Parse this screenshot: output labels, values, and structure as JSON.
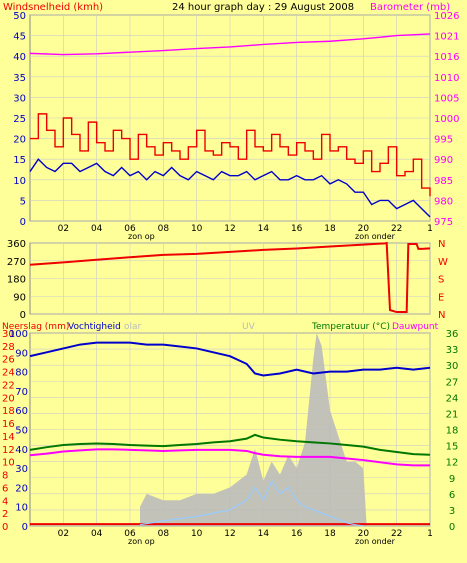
{
  "header": {
    "left_label": "Windsnelheid (kmh)",
    "title": "24 hour graph day : 29 August 2008",
    "right_label": "Barometer (mb)"
  },
  "colors": {
    "background": "#ffff99",
    "gust": "#ee0000",
    "wind": "#0000cc",
    "barometer": "#ff00ff",
    "direction": "#ee0000",
    "rain": "#bbbbbb",
    "humidity": "#0000cc",
    "solar": "#bbbbbb",
    "uv": "#99ccff",
    "temperature": "#007700",
    "dewpoint": "#ff00ff",
    "axis_left": "#0000cc",
    "axis_right": "#ff00ff"
  },
  "sun_labels": {
    "sunrise": "zon op",
    "sunset": "zon onder"
  },
  "chart_data": [
    {
      "name": "wind_barometer",
      "type": "line",
      "x_ticks": [
        "02",
        "04",
        "06",
        "08",
        "10",
        "12",
        "14",
        "16",
        "18",
        "20",
        "22",
        "1"
      ],
      "x_range_hours": [
        0,
        24
      ],
      "y_left": {
        "label": "Windsnelheid (kmh)",
        "ticks": [
          0,
          5,
          10,
          15,
          20,
          25,
          30,
          35,
          40,
          45,
          50
        ],
        "range": [
          0,
          50
        ]
      },
      "y_right": {
        "label": "Barometer (mb)",
        "ticks": [
          975,
          980,
          985,
          990,
          995,
          1000,
          1005,
          1010,
          1016,
          1021,
          1026
        ],
        "range": [
          975,
          1026
        ]
      },
      "series": [
        {
          "name": "gust",
          "axis": "left",
          "step": true,
          "x": [
            0,
            0.5,
            1,
            1.5,
            2,
            2.5,
            3,
            3.5,
            4,
            4.5,
            5,
            5.5,
            6,
            6.5,
            7,
            7.5,
            8,
            8.5,
            9,
            9.5,
            10,
            10.5,
            11,
            11.5,
            12,
            12.5,
            13,
            13.5,
            14,
            14.5,
            15,
            15.5,
            16,
            16.5,
            17,
            17.5,
            18,
            18.5,
            19,
            19.5,
            20,
            20.5,
            21,
            21.5,
            22,
            22.5,
            23,
            23.5,
            24
          ],
          "y": [
            20,
            26,
            22,
            18,
            25,
            21,
            17,
            24,
            19,
            17,
            22,
            20,
            15,
            21,
            18,
            16,
            19,
            17,
            15,
            18,
            22,
            17,
            16,
            19,
            18,
            15,
            22,
            18,
            17,
            21,
            18,
            16,
            19,
            17,
            15,
            21,
            17,
            18,
            15,
            14,
            17,
            12,
            14,
            18,
            11,
            12,
            15,
            8,
            6
          ]
        },
        {
          "name": "wind",
          "axis": "left",
          "step": false,
          "x": [
            0,
            0.5,
            1,
            1.5,
            2,
            2.5,
            3,
            3.5,
            4,
            4.5,
            5,
            5.5,
            6,
            6.5,
            7,
            7.5,
            8,
            8.5,
            9,
            9.5,
            10,
            10.5,
            11,
            11.5,
            12,
            12.5,
            13,
            13.5,
            14,
            14.5,
            15,
            15.5,
            16,
            16.5,
            17,
            17.5,
            18,
            18.5,
            19,
            19.5,
            20,
            20.5,
            21,
            21.5,
            22,
            22.5,
            23,
            23.5,
            24
          ],
          "y": [
            12,
            15,
            13,
            12,
            14,
            14,
            12,
            13,
            14,
            12,
            11,
            13,
            11,
            12,
            10,
            12,
            11,
            13,
            11,
            10,
            12,
            11,
            10,
            12,
            11,
            11,
            12,
            10,
            11,
            12,
            10,
            10,
            11,
            10,
            10,
            11,
            9,
            10,
            9,
            7,
            7,
            4,
            5,
            5,
            3,
            4,
            5,
            3,
            1
          ]
        },
        {
          "name": "barometer",
          "axis": "right",
          "step": false,
          "x": [
            0,
            2,
            4,
            6,
            8,
            10,
            12,
            14,
            16,
            18,
            20,
            22,
            24
          ],
          "y": [
            1016.5,
            1016.2,
            1016.4,
            1016.8,
            1017.2,
            1017.7,
            1018.1,
            1018.7,
            1019.2,
            1019.5,
            1020.1,
            1020.9,
            1021.3
          ]
        }
      ]
    },
    {
      "name": "wind_direction",
      "type": "line",
      "x_range_hours": [
        0,
        24
      ],
      "y_left": {
        "ticks": [
          0,
          90,
          180,
          270,
          360
        ],
        "range": [
          0,
          360
        ]
      },
      "y_right": {
        "ticks": [
          "N",
          "W",
          "S",
          "E",
          "N"
        ]
      },
      "series": [
        {
          "name": "direction",
          "step": false,
          "x": [
            0,
            2,
            4,
            6,
            8,
            10,
            12,
            14,
            16,
            18,
            20,
            21.3,
            21.4,
            21.6,
            22,
            22.6,
            22.7,
            23.2,
            23.3,
            23.5,
            24
          ],
          "y": [
            250,
            262,
            275,
            288,
            300,
            305,
            315,
            325,
            332,
            342,
            352,
            358,
            360,
            20,
            10,
            10,
            355,
            355,
            330,
            330,
            333
          ]
        }
      ]
    },
    {
      "name": "rain_humidity_temperature",
      "type": "line",
      "x_ticks": [
        "02",
        "04",
        "06",
        "08",
        "10",
        "12",
        "14",
        "16",
        "18",
        "20",
        "22",
        "1"
      ],
      "x_range_hours": [
        0,
        24
      ],
      "header_labels": [
        "Neerslag (mm)",
        "Vochtigheid",
        "olar",
        "UV",
        "Temperatuur (°C)",
        "Dauwpunt"
      ],
      "y_rain": {
        "label": "Neerslag (mm)",
        "ticks": [
          0,
          2,
          4,
          6,
          8,
          10,
          12,
          14,
          16,
          18,
          20,
          22,
          24,
          26,
          28,
          30
        ],
        "range": [
          0,
          30
        ]
      },
      "y_humidity": {
        "label": "Vochtigheid",
        "ticks": [
          0,
          10,
          20,
          30,
          40,
          50,
          60,
          70,
          80,
          90,
          100
        ],
        "range": [
          0,
          100
        ]
      },
      "y_temperature": {
        "label": "Temperatuur (°C)",
        "ticks": [
          0,
          3,
          6,
          9,
          12,
          15,
          18,
          21,
          24,
          27,
          30,
          33,
          36
        ],
        "range": [
          0,
          36
        ]
      },
      "series": [
        {
          "name": "humidity",
          "axis": "humidity",
          "x": [
            0,
            1,
            2,
            3,
            4,
            5,
            6,
            7,
            8,
            9,
            10,
            11,
            12,
            13,
            13.5,
            14,
            15,
            16,
            17,
            18,
            19,
            20,
            21,
            22,
            23,
            24
          ],
          "y": [
            88,
            90,
            92,
            94,
            95,
            95,
            95,
            94,
            94,
            93,
            92,
            90,
            88,
            84,
            79,
            78,
            79,
            81,
            79,
            80,
            80,
            81,
            81,
            82,
            81,
            82
          ]
        },
        {
          "name": "temperature",
          "axis": "temperature",
          "x": [
            0,
            1,
            2,
            3,
            4,
            5,
            6,
            7,
            8,
            9,
            10,
            11,
            12,
            13,
            13.5,
            14,
            15,
            16,
            17,
            18,
            19,
            20,
            21,
            22,
            23,
            24
          ],
          "y": [
            14.2,
            14.7,
            15.1,
            15.3,
            15.4,
            15.3,
            15.1,
            15.0,
            14.9,
            15.1,
            15.3,
            15.6,
            15.8,
            16.3,
            17.0,
            16.5,
            16.1,
            15.8,
            15.6,
            15.4,
            15.1,
            14.8,
            14.2,
            13.8,
            13.4,
            13.3
          ]
        },
        {
          "name": "dewpoint",
          "axis": "temperature",
          "x": [
            0,
            1,
            2,
            3,
            4,
            5,
            6,
            7,
            8,
            9,
            10,
            11,
            12,
            13,
            13.5,
            14,
            15,
            16,
            17,
            18,
            19,
            20,
            21,
            22,
            23,
            24
          ],
          "y": [
            13.2,
            13.5,
            13.9,
            14.1,
            14.3,
            14.3,
            14.2,
            14.1,
            14.0,
            14.1,
            14.2,
            14.2,
            14.2,
            14.0,
            13.6,
            13.3,
            13.0,
            12.9,
            12.9,
            12.9,
            12.6,
            12.3,
            11.9,
            11.5,
            11.3,
            11.3
          ]
        },
        {
          "name": "rain_total",
          "axis": "rain",
          "x": [
            0,
            24
          ],
          "y": [
            0.3,
            0.3
          ]
        },
        {
          "name": "solar",
          "axis": "rain",
          "type": "area",
          "x": [
            6.6,
            7,
            8,
            9,
            10,
            11,
            12,
            13,
            13.5,
            14,
            14.5,
            15,
            15.5,
            16,
            16.5,
            17,
            17.2,
            17.5,
            18,
            18.5,
            19,
            19.5,
            20,
            20.2
          ],
          "y": [
            3,
            5,
            4,
            4,
            5,
            5,
            6,
            8,
            12,
            7,
            10,
            8,
            11,
            9,
            13,
            26,
            30,
            28,
            18,
            14,
            10,
            10,
            9,
            0
          ]
        },
        {
          "name": "uv",
          "axis": "rain",
          "x": [
            6.6,
            8,
            10,
            11,
            12,
            13,
            13.5,
            14,
            14.5,
            15,
            15.5,
            16,
            16.5,
            17,
            17.5,
            18,
            18.5,
            19,
            19.5,
            20
          ],
          "y": [
            0.2,
            0.8,
            1.5,
            2,
            2.5,
            4,
            6,
            4,
            7,
            5,
            6,
            4,
            3,
            2.5,
            2,
            1.5,
            1,
            0.5,
            0.2,
            0
          ]
        }
      ]
    }
  ]
}
